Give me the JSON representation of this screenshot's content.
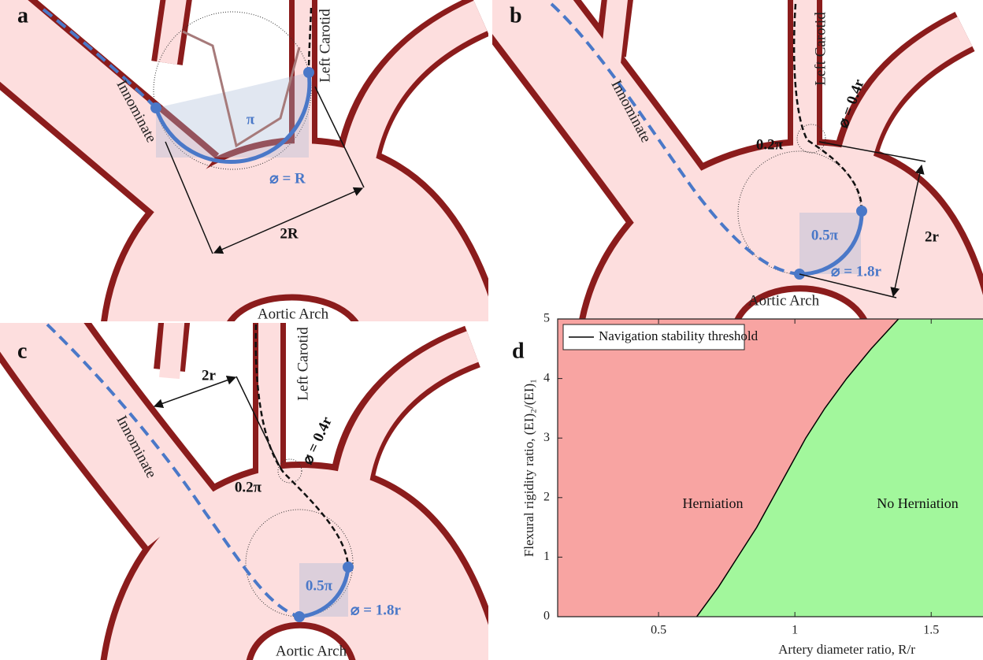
{
  "panels": [
    {
      "label": "a",
      "texts": {
        "innominate": "Innominate",
        "left_carotid": "Left Carotid",
        "angle": "π",
        "diameter": "⌀ = R",
        "width": "2R",
        "arch": "Aortic Arch"
      }
    },
    {
      "label": "b",
      "texts": {
        "innominate": "Innominate",
        "left_carotid": "Left Carotid",
        "tip_diameter": "⌀ = 0.4r",
        "tip_angle": "0.2π",
        "angle": "0.5π",
        "diameter": "⌀ = 1.8r",
        "width": "2r",
        "arch": "Aortic Arch"
      }
    },
    {
      "label": "c",
      "texts": {
        "innominate": "Innominate",
        "left_carotid": "Left Carotid",
        "tip_diameter": "⌀ = 0.4r",
        "tip_angle": "0.2π",
        "angle": "0.5π",
        "diameter": "⌀ = 1.8r",
        "width": "2r",
        "arch": "Aortic Arch"
      }
    }
  ],
  "chart_data": {
    "type": "line",
    "panel_label": "d",
    "xlabel": "Artery diameter ratio, R/r",
    "ylabel": "Flexural rigidity ratio, (EI)₂/(EI)₁",
    "xlim": [
      0.13,
      1.69
    ],
    "ylim": [
      0,
      5
    ],
    "xticks": [
      0.5,
      1,
      1.5
    ],
    "yticks": [
      0,
      1,
      2,
      3,
      4,
      5
    ],
    "series": [
      {
        "name": "Navigation stability threshold",
        "color": "#000000",
        "x": [
          0.64,
          0.72,
          0.79,
          0.86,
          0.92,
          0.98,
          1.04,
          1.11,
          1.19,
          1.28,
          1.38
        ],
        "values": [
          0,
          0.5,
          1,
          1.5,
          2,
          2.5,
          3,
          3.5,
          4,
          4.5,
          5
        ]
      }
    ],
    "regions": [
      {
        "label": "Herniation",
        "color": "#f8a4a2"
      },
      {
        "label": "No Herniation",
        "color": "#a2f79c"
      }
    ],
    "legend": "upper left"
  }
}
